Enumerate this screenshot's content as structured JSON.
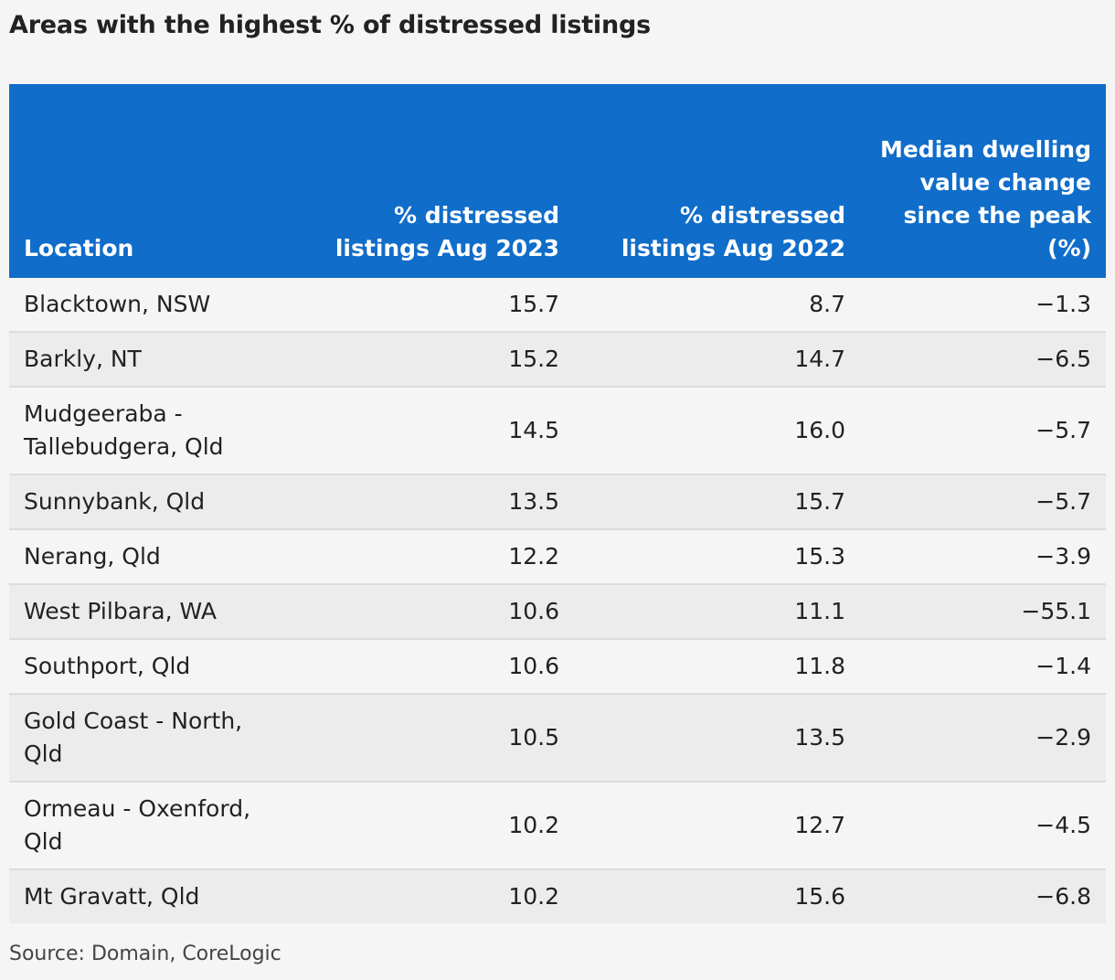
{
  "title": "Areas with the highest % of distressed listings",
  "source": "Source: Domain, CoreLogic",
  "colors": {
    "header_bg": "#106dc9",
    "header_text": "#ffffff",
    "row_odd": "#f5f5f5",
    "row_even": "#ececec"
  },
  "chart_data": {
    "type": "table",
    "title": "Areas with the highest % of distressed listings",
    "columns": [
      "Location",
      "% distressed listings Aug 2023",
      "% distressed listings Aug 2022",
      "Median dwelling value change since the peak (%)"
    ],
    "rows": [
      [
        "Blacktown, NSW",
        "15.7",
        "8.7",
        "−1.3"
      ],
      [
        "Barkly, NT",
        "15.2",
        "14.7",
        "−6.5"
      ],
      [
        "Mudgeeraba - Tallebudgera, Qld",
        "14.5",
        "16.0",
        "−5.7"
      ],
      [
        "Sunnybank, Qld",
        "13.5",
        "15.7",
        "−5.7"
      ],
      [
        "Nerang, Qld",
        "12.2",
        "15.3",
        "−3.9"
      ],
      [
        "West Pilbara, WA",
        "10.6",
        "11.1",
        "−55.1"
      ],
      [
        "Southport, Qld",
        "10.6",
        "11.8",
        "−1.4"
      ],
      [
        "Gold Coast - North, Qld",
        "10.5",
        "13.5",
        "−2.9"
      ],
      [
        "Ormeau - Oxenford, Qld",
        "10.2",
        "12.7",
        "−4.5"
      ],
      [
        "Mt Gravatt, Qld",
        "10.2",
        "15.6",
        "−6.8"
      ]
    ]
  }
}
